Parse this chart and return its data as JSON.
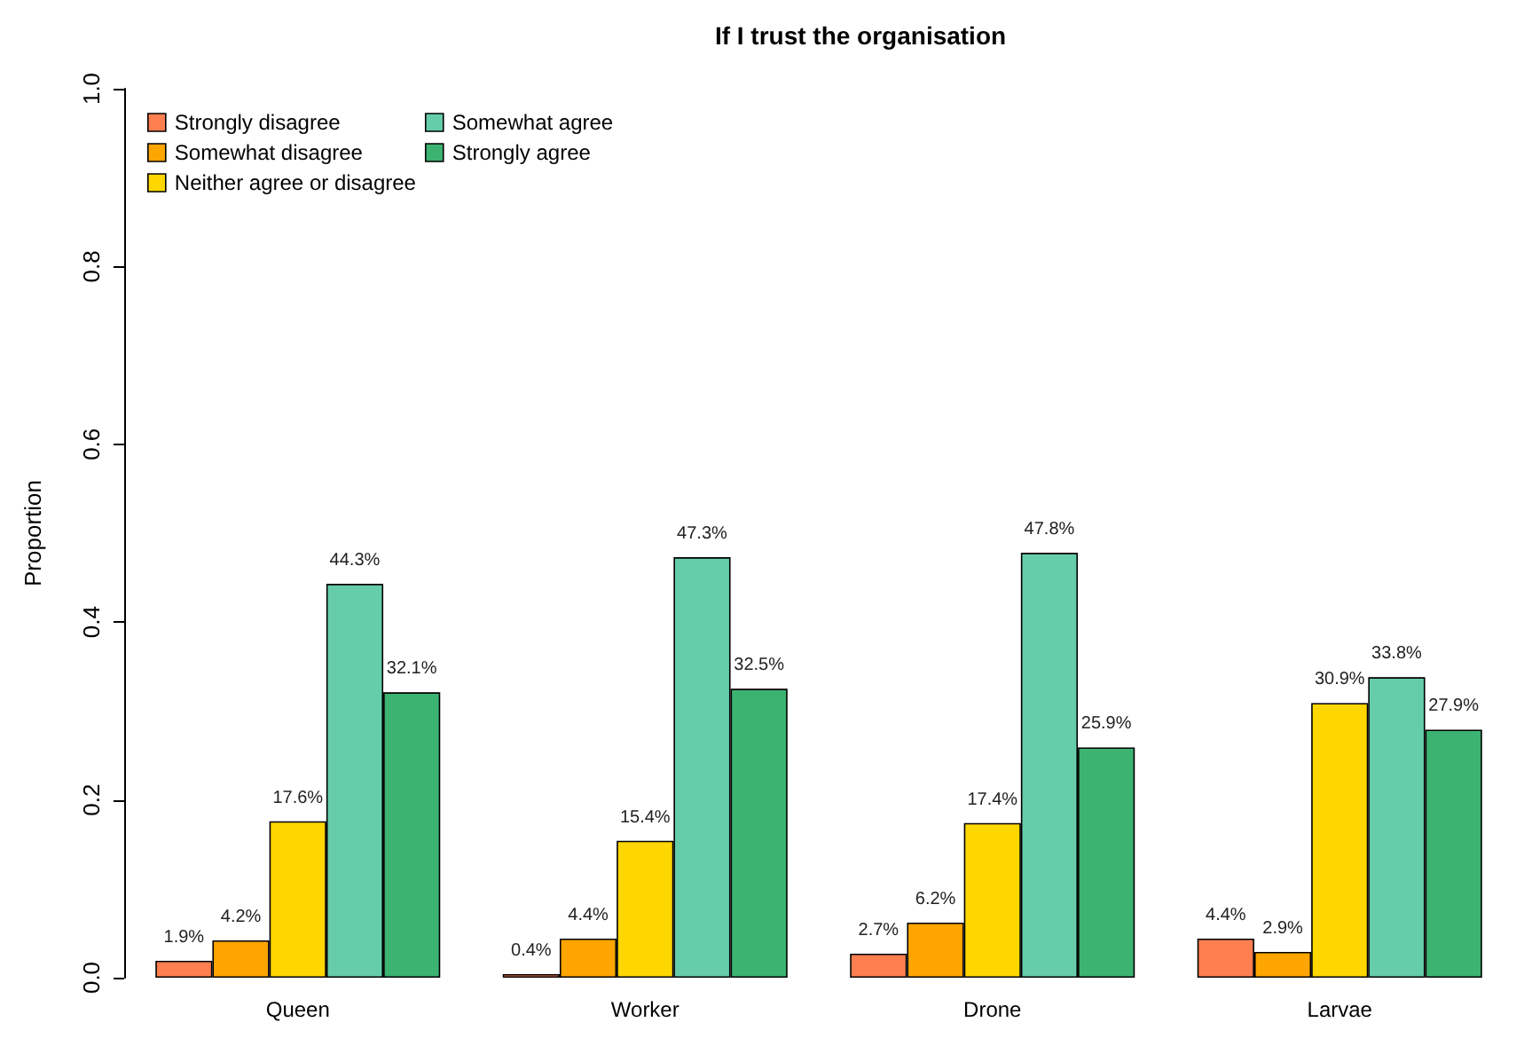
{
  "chart_data": {
    "type": "bar",
    "title": "If I trust the organisation",
    "ylabel": "Proportion",
    "categories": [
      "Queen",
      "Worker",
      "Drone",
      "Larvae"
    ],
    "series": [
      {
        "name": "Strongly disagree",
        "color": "#ff7f50",
        "values": [
          0.019,
          0.004,
          0.027,
          0.044
        ],
        "value_labels": [
          "1.9%",
          "0.4%",
          "2.7%",
          "4.4%"
        ]
      },
      {
        "name": "Somewhat disagree",
        "color": "#ffa500",
        "values": [
          0.042,
          0.044,
          0.062,
          0.029
        ],
        "value_labels": [
          "4.2%",
          "4.4%",
          "6.2%",
          "2.9%"
        ]
      },
      {
        "name": "Neither agree or disagree",
        "color": "#ffd700",
        "values": [
          0.176,
          0.154,
          0.174,
          0.309
        ],
        "value_labels": [
          "17.6%",
          "15.4%",
          "17.4%",
          "30.9%"
        ]
      },
      {
        "name": "Somewhat agree",
        "color": "#66cdaa",
        "values": [
          0.443,
          0.473,
          0.478,
          0.338
        ],
        "value_labels": [
          "44.3%",
          "47.3%",
          "47.8%",
          "33.8%"
        ]
      },
      {
        "name": "Strongly agree",
        "color": "#3cb371",
        "values": [
          0.321,
          0.325,
          0.259,
          0.279
        ],
        "value_labels": [
          "32.1%",
          "32.5%",
          "25.9%",
          "27.9%"
        ]
      }
    ],
    "ylim": [
      0,
      1
    ],
    "yticks": [
      {
        "value": 0,
        "label": "0.0"
      },
      {
        "value": 0.2,
        "label": "0.2"
      },
      {
        "value": 0.4,
        "label": "0.4"
      },
      {
        "value": 0.6,
        "label": "0.6"
      },
      {
        "value": 0.8,
        "label": "0.8"
      },
      {
        "value": 1,
        "label": "1.0"
      }
    ],
    "grid": false,
    "legend": "top left"
  }
}
